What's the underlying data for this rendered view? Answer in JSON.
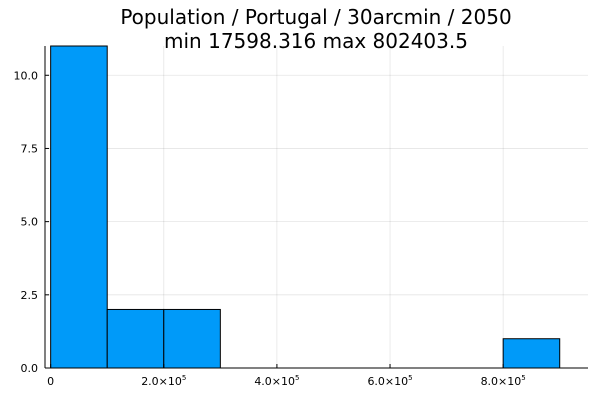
{
  "chart_data": {
    "type": "bar",
    "title_line1": "Population / Portugal / 30arcmin / 2050",
    "title_line2": "min 17598.316  max 802403.5",
    "xlabel": "",
    "ylabel": "",
    "bin_edges": [
      0,
      100000,
      200000,
      300000,
      400000,
      500000,
      600000,
      700000,
      800000,
      900000
    ],
    "values": [
      11,
      2,
      2,
      0,
      0,
      0,
      0,
      0,
      1
    ],
    "xlim": [
      -10000,
      950000
    ],
    "ylim": [
      0,
      11
    ],
    "xticks": [
      {
        "value": 0,
        "mantissa": "0",
        "exp": ""
      },
      {
        "value": 200000,
        "mantissa": "2.0×10",
        "exp": "5"
      },
      {
        "value": 400000,
        "mantissa": "4.0×10",
        "exp": "5"
      },
      {
        "value": 600000,
        "mantissa": "6.0×10",
        "exp": "5"
      },
      {
        "value": 800000,
        "mantissa": "8.0×10",
        "exp": "5"
      }
    ],
    "yticks": [
      {
        "value": 0,
        "label": "0.0"
      },
      {
        "value": 2.5,
        "label": "2.5"
      },
      {
        "value": 5,
        "label": "5.0"
      },
      {
        "value": 7.5,
        "label": "7.5"
      },
      {
        "value": 10,
        "label": "10.0"
      }
    ],
    "grid": true,
    "legend": false,
    "bar_color": "#009af9",
    "edge_color": "#000000"
  }
}
